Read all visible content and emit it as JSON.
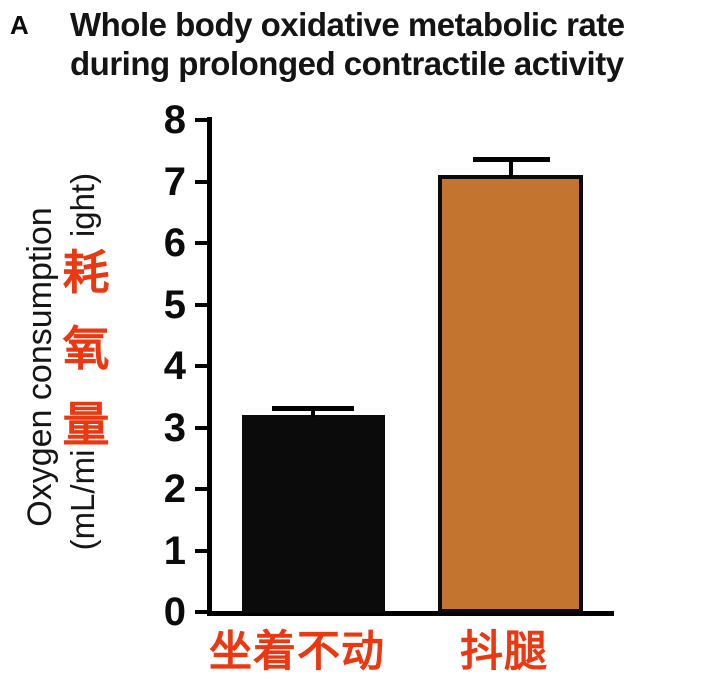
{
  "panel_label": "A",
  "title_line1": "Whole body oxidative metabolic rate",
  "title_line2": "during prolonged contractile activity",
  "y_axis": {
    "label_main": "Oxygen consumption",
    "label_unit_bottom": "(mL/mi",
    "label_unit_top": "ight)",
    "overlay_chars": [
      "耗",
      "氧",
      "量"
    ],
    "ticks": [
      "8",
      "7",
      "6",
      "5",
      "4",
      "3",
      "2",
      "1",
      "0"
    ]
  },
  "colors": {
    "bar_sitting": "#0b0b0b",
    "bar_shaking": "#c3742e",
    "red_text": "#ea3912",
    "axis": "#000000"
  },
  "chart_data": {
    "type": "bar",
    "title": "Whole body oxidative metabolic rate during prolonged contractile activity",
    "ylabel": "Oxygen consumption (mL/mi ... ight)",
    "ylabel_overlay": "耗氧量",
    "categories": [
      "坐着不动",
      "抖腿"
    ],
    "values": [
      3.2,
      7.1
    ],
    "errors_upper": [
      0.15,
      0.3
    ],
    "bar_colors": [
      "#0b0b0b",
      "#c3742e"
    ],
    "ylim": [
      0,
      8
    ],
    "ytick_step": 1,
    "grid": false,
    "legend": false
  }
}
